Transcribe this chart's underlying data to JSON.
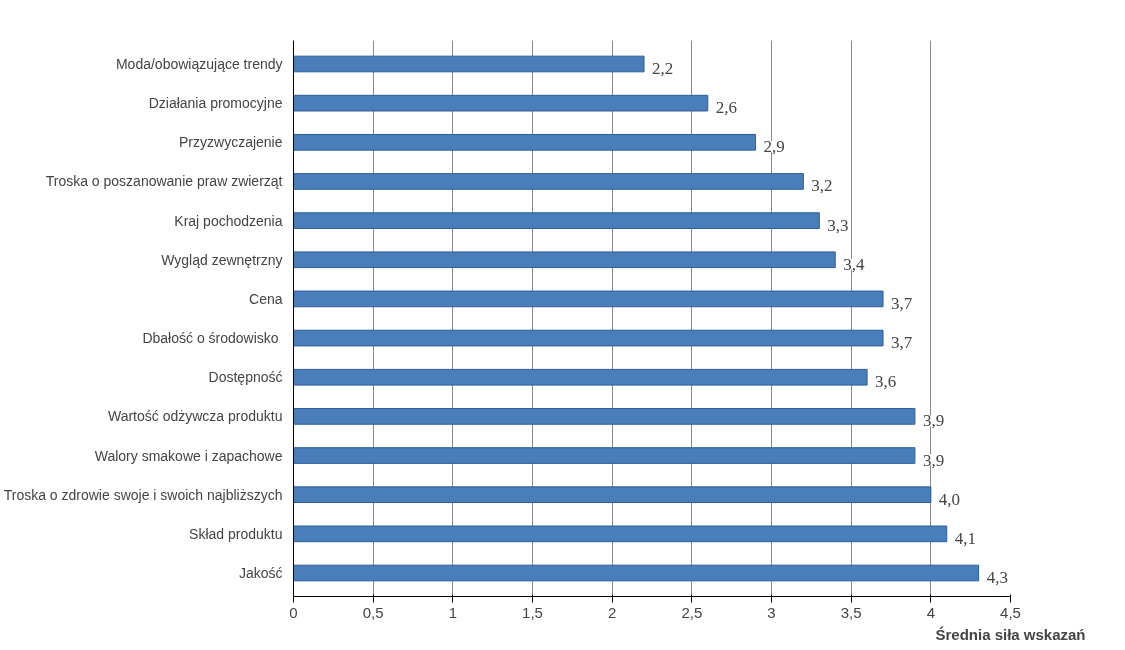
{
  "chart_data": {
    "type": "bar",
    "orientation": "horizontal",
    "xlabel": "Średnia siła wskazań",
    "categories": [
      "Moda/obowiązujące trendy",
      "Działania promocyjne",
      "Przyzwyczajenie",
      "Troska o poszanowanie praw zwierząt",
      "Kraj pochodzenia",
      "Wygląd zewnętrzny",
      "Cena",
      "Dbałość  o środowisko",
      "Dostępność",
      "Wartość odżywcza produktu",
      "Walory smakowe i zapachowe",
      "Troska o zdrowie swoje i swoich najbliższych",
      "Skład produktu",
      "Jakość"
    ],
    "values": [
      2.2,
      2.6,
      2.9,
      3.2,
      3.3,
      3.4,
      3.7,
      3.7,
      3.6,
      3.9,
      3.9,
      4.0,
      4.1,
      4.3
    ],
    "value_labels": [
      "2,2",
      "2,6",
      "2,9",
      "3,2",
      "3,3",
      "3,4",
      "3,7",
      "3,7",
      "3,6",
      "3,9",
      "3,9",
      "4,0",
      "4,1",
      "4,3"
    ],
    "color": "#4a7ebb",
    "xlim": [
      0,
      4.5
    ],
    "xticks": [
      0,
      {
        "value": 0.5,
        "label": "0,5"
      },
      1,
      {
        "value": 1.5,
        "label": "1,5"
      },
      2,
      {
        "value": 2.5,
        "label": "2,5"
      },
      3,
      {
        "value": 3.5,
        "label": "3,5"
      },
      4,
      {
        "value": 4.5,
        "label": "4,5"
      }
    ],
    "grid": "x"
  }
}
